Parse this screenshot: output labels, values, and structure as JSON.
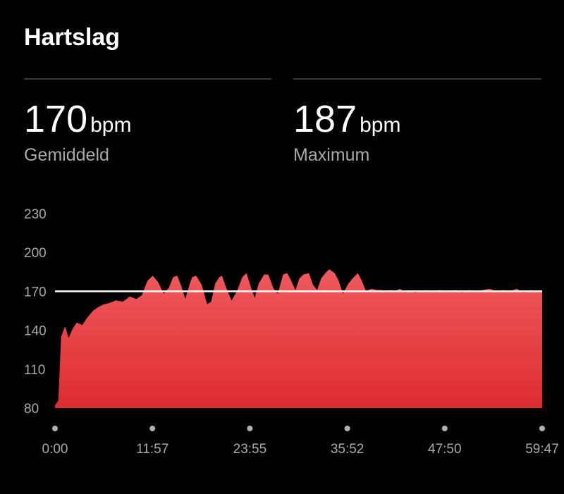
{
  "header": {
    "title": "Hartslag"
  },
  "stats": [
    {
      "value": "170",
      "unit": "bpm",
      "label": "Gemiddeld"
    },
    {
      "value": "187",
      "unit": "bpm",
      "label": "Maximum"
    }
  ],
  "colors": {
    "background": "#000000",
    "area_top": "#ef5a5e",
    "area_bottom": "#de2c2f",
    "average_line": "#ffffff",
    "muted_text": "#a9a9a9",
    "divider": "#3a3a3a"
  },
  "chart_data": {
    "type": "area",
    "title": "",
    "xlabel": "",
    "ylabel": "",
    "ylim": [
      80,
      230
    ],
    "yticks": [
      "230",
      "200",
      "170",
      "140",
      "110",
      "80"
    ],
    "xlim_seconds": [
      0,
      3587
    ],
    "xticks": [
      "0:00",
      "11:57",
      "23:55",
      "35:52",
      "47:50",
      "59:47"
    ],
    "average_line": 170,
    "grid": false,
    "legend": "none",
    "series": [
      {
        "x_seconds": [
          0,
          25,
          45,
          75,
          100,
          130,
          160,
          200,
          240,
          280,
          320,
          360,
          400,
          450,
          500,
          550,
          600,
          640,
          680,
          720,
          760,
          800,
          840,
          870,
          900,
          930,
          960,
          990,
          1010,
          1040,
          1080,
          1120,
          1150,
          1180,
          1210,
          1230,
          1260,
          1300,
          1340,
          1380,
          1410,
          1440,
          1470,
          1500,
          1540,
          1570,
          1610,
          1640,
          1680,
          1710,
          1740,
          1770,
          1800,
          1830,
          1870,
          1900,
          1930,
          1960,
          1990,
          2020,
          2060,
          2090,
          2120,
          2160,
          2200,
          2230,
          2260,
          2290,
          2330,
          2370,
          2400,
          2430,
          2470,
          2500,
          2540,
          2580,
          2610,
          2650,
          2690,
          2730,
          2780,
          2830,
          2900,
          2950,
          3000,
          3050,
          3100,
          3150,
          3200,
          3250,
          3300,
          3350,
          3400,
          3450,
          3500,
          3550,
          3587
        ],
        "values": [
          82,
          86,
          135,
          143,
          134,
          141,
          146,
          144,
          150,
          155,
          158,
          160,
          161,
          163,
          162,
          166,
          164,
          167,
          178,
          182,
          177,
          168,
          173,
          181,
          182,
          174,
          164,
          175,
          181,
          182,
          175,
          160,
          162,
          176,
          181,
          182,
          173,
          163,
          170,
          181,
          184,
          174,
          165,
          176,
          183,
          183,
          172,
          168,
          183,
          184,
          178,
          171,
          180,
          183,
          184,
          175,
          171,
          180,
          184,
          187,
          184,
          178,
          168,
          176,
          181,
          184,
          178,
          170,
          172,
          171,
          171,
          170,
          171,
          170,
          172,
          169,
          171,
          169,
          170,
          171,
          170,
          171,
          170,
          171,
          169,
          171,
          170,
          171,
          172,
          170,
          171,
          170,
          172,
          169,
          171,
          170,
          170
        ]
      }
    ]
  }
}
